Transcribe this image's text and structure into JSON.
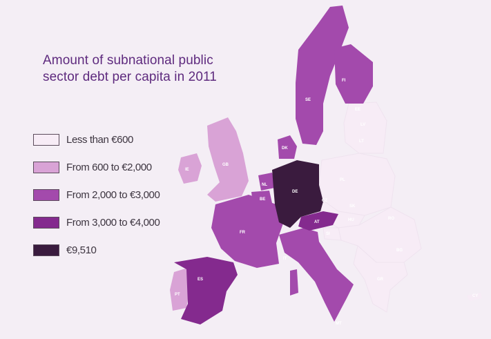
{
  "title_line1": "Amount of subnational public",
  "title_line2": "sector debt per capita in 2011",
  "colors": {
    "background": "#f4eef5",
    "less_than_600": "#f7ecf6",
    "from_600_to_2000": "#d9a3d6",
    "from_2000_to_3000": "#a34aac",
    "from_3000_to_4000": "#842a8e",
    "top_9510": "#3a1b3e",
    "title": "#5e2a7e"
  },
  "legend": [
    {
      "label": "Less than €600",
      "color": "#f7ecf6"
    },
    {
      "label": "From 600 to €2,000",
      "color": "#d9a3d6"
    },
    {
      "label": "From 2,000 to €3,000",
      "color": "#a34aac"
    },
    {
      "label": "From 3,000 to €4,000",
      "color": "#842a8e"
    },
    {
      "label": "€9,510",
      "color": "#3a1b3e"
    }
  ],
  "countries": [
    {
      "code": "FI"
    },
    {
      "code": "SE"
    },
    {
      "code": "DK"
    },
    {
      "code": "IE"
    },
    {
      "code": "GB"
    },
    {
      "code": "NL"
    },
    {
      "code": "BE"
    },
    {
      "code": "DE"
    },
    {
      "code": "AT"
    },
    {
      "code": "FR"
    },
    {
      "code": "ES"
    },
    {
      "code": "PT"
    },
    {
      "code": "IT"
    },
    {
      "code": "PL"
    },
    {
      "code": "EE"
    },
    {
      "code": "LV"
    },
    {
      "code": "LT"
    },
    {
      "code": "CZ"
    },
    {
      "code": "SK"
    },
    {
      "code": "HU"
    },
    {
      "code": "RO"
    },
    {
      "code": "BG"
    },
    {
      "code": "GR"
    },
    {
      "code": "CY"
    },
    {
      "code": "SI"
    },
    {
      "code": "MT"
    }
  ]
}
